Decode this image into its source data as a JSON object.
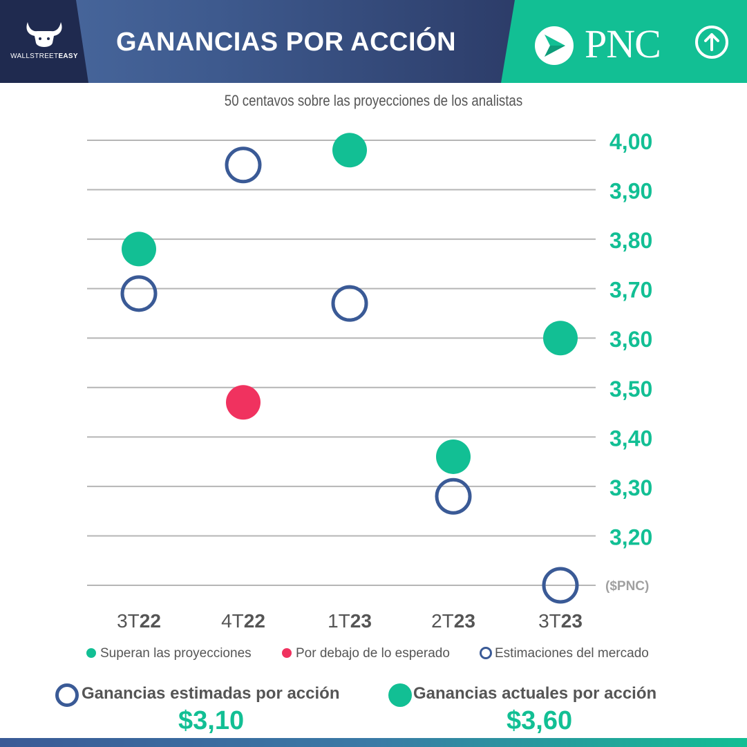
{
  "header": {
    "brand": {
      "name_regular": "WALLSTREET",
      "name_bold": "EASY",
      "icon": "bull-horns-icon"
    },
    "title": "GANANCIAS POR ACCIÓN",
    "company": "PNC",
    "trend_icon": "arrow-up-circle-icon"
  },
  "subtitle": "50 centavos sobre las proyecciones de los analistas",
  "chart_data": {
    "type": "scatter",
    "categories": [
      {
        "prefix": "3T",
        "year": "22"
      },
      {
        "prefix": "4T",
        "year": "22"
      },
      {
        "prefix": "1T",
        "year": "23"
      },
      {
        "prefix": "2T",
        "year": "23"
      },
      {
        "prefix": "3T",
        "year": "23"
      }
    ],
    "y_ticks": [
      "4,00",
      "3,90",
      "3,80",
      "3,70",
      "3,60",
      "3,50",
      "3,40",
      "3,30",
      "3,20"
    ],
    "y_unit_label": "($PNC)",
    "ylim": [
      3.1,
      4.0
    ],
    "grid": true,
    "series": [
      {
        "name": "Estimaciones del mercado",
        "style": "hollow-blue",
        "values": [
          3.69,
          3.95,
          3.67,
          3.28,
          3.1
        ]
      },
      {
        "name": "Superan las proyecciones",
        "style": "filled-green",
        "values": [
          3.78,
          null,
          3.98,
          3.36,
          3.6
        ]
      },
      {
        "name": "Por debajo de lo esperado",
        "style": "filled-red",
        "values": [
          null,
          3.47,
          null,
          null,
          null
        ]
      }
    ],
    "colors": {
      "green": "#12bf94",
      "red": "#f0325f",
      "blue": "#3a5a96",
      "grid": "#b5b5b5",
      "tick": "#12bf94"
    }
  },
  "legend": [
    {
      "label": "Superan las proyecciones",
      "marker": "filled-green"
    },
    {
      "label": "Por debajo de lo esperado",
      "marker": "filled-red"
    },
    {
      "label": "Estimaciones del mercado",
      "marker": "hollow-blue"
    }
  ],
  "summary": {
    "estimated": {
      "label": "Ganancias estimadas por acción",
      "value": "$3,10"
    },
    "actual": {
      "label": "Ganancias actuales por acción",
      "value": "$3,60"
    }
  }
}
